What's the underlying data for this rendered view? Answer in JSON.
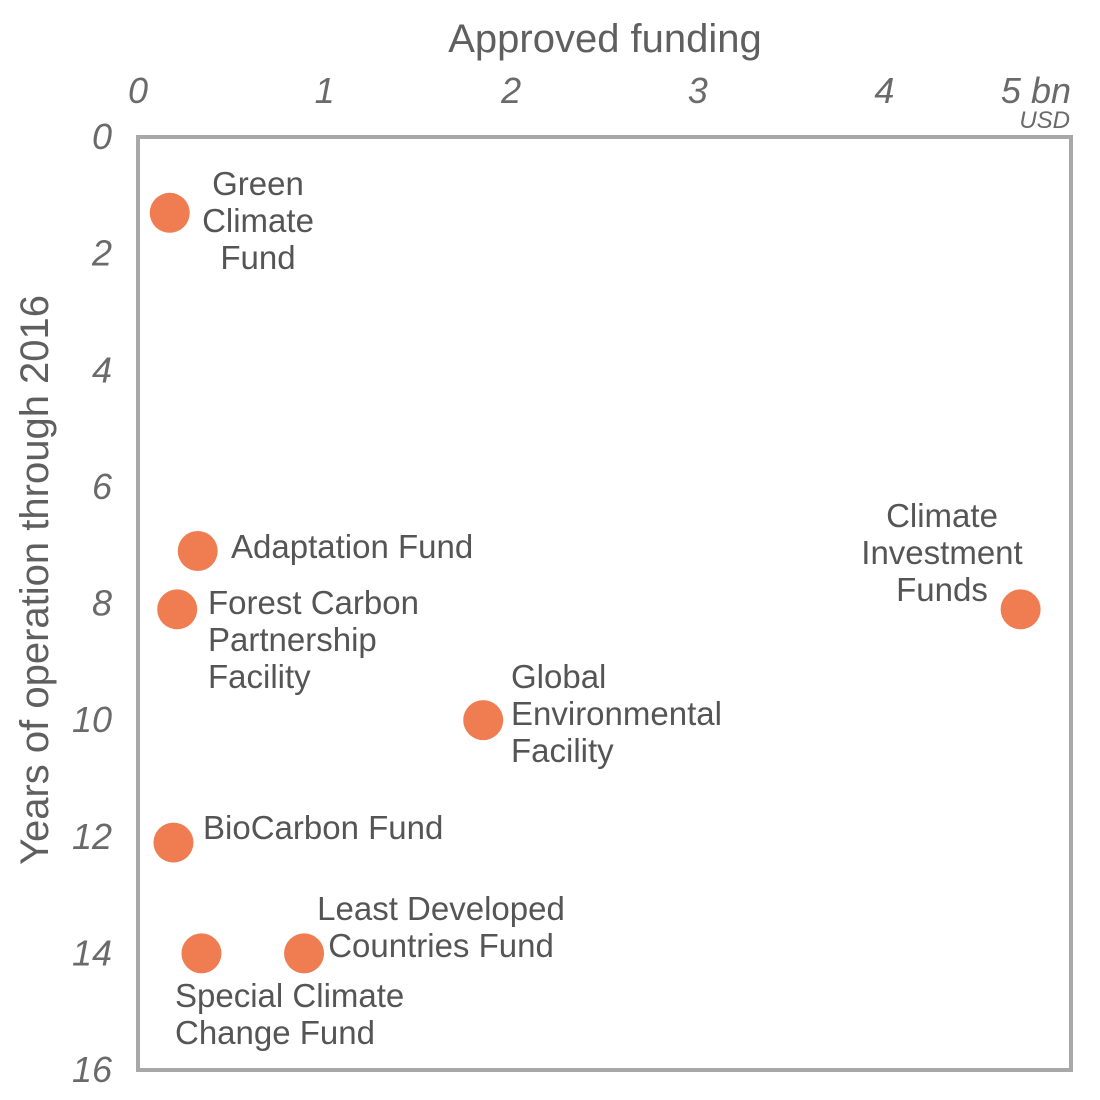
{
  "chart_data": {
    "type": "scatter",
    "xlabel": "Approved funding",
    "ylabel": "Years of operation through 2016",
    "x_unit": "USD",
    "xlim": [
      0,
      5
    ],
    "ylim": [
      0,
      16
    ],
    "y_inverted": true,
    "grid": false,
    "x_tick_labels": [
      "0",
      "1",
      "2",
      "3",
      "4",
      "5 bn"
    ],
    "y_tick_labels": [
      "0",
      "2",
      "4",
      "6",
      "8",
      "10",
      "12",
      "14",
      "16"
    ],
    "x_ticks": [
      0,
      1,
      2,
      3,
      4,
      5
    ],
    "y_ticks": [
      0,
      2,
      4,
      6,
      8,
      10,
      12,
      14,
      16
    ],
    "colors": {
      "point": "#f07d52",
      "frame": "#a8a8a8"
    },
    "points": [
      {
        "label": [
          "Green",
          "Climate",
          "Fund"
        ],
        "x": 0.17,
        "y": 1.3
      },
      {
        "label": [
          "Adaptation Fund"
        ],
        "x": 0.32,
        "y": 7.1
      },
      {
        "label": [
          "Forest Carbon",
          "Partnership",
          "Facility"
        ],
        "x": 0.21,
        "y": 8.1
      },
      {
        "label": [
          "Climate",
          "Investment",
          "Funds"
        ],
        "x": 4.73,
        "y": 8.1
      },
      {
        "label": [
          "Global",
          "Environmental",
          "Facility"
        ],
        "x": 1.85,
        "y": 10.0
      },
      {
        "label": [
          "BioCarbon Fund"
        ],
        "x": 0.19,
        "y": 12.1
      },
      {
        "label": [
          "Special Climate",
          "Change Fund"
        ],
        "x": 0.34,
        "y": 14.0
      },
      {
        "label": [
          "Least Developed",
          "Countries Fund"
        ],
        "x": 0.89,
        "y": 14.0
      }
    ]
  }
}
